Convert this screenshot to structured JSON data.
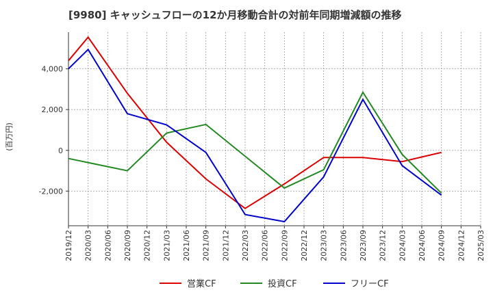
{
  "chart_data": {
    "type": "line",
    "title": "[9980]  キャッシュフローの12か月移動合計の対前年同期増減額の推移",
    "ylabel": "(百万円)",
    "xlabel": "",
    "ylim": [
      -3700,
      5800
    ],
    "yticks": [
      4000,
      2000,
      0,
      -2000
    ],
    "ytick_labels": [
      "4,000",
      "2,000",
      "0",
      "-2,000"
    ],
    "categories": [
      "2019/12",
      "2020/03",
      "2020/06",
      "2020/09",
      "2020/12",
      "2021/03",
      "2021/06",
      "2021/09",
      "2021/12",
      "2022/03",
      "2022/06",
      "2022/09",
      "2022/12",
      "2023/03",
      "2023/06",
      "2023/09",
      "2023/12",
      "2024/03",
      "2024/06",
      "2024/09",
      "2024/12",
      "2025/03"
    ],
    "grid": true,
    "legend_position": "bottom",
    "series": [
      {
        "name": "営業CF",
        "color": "#dd0000",
        "values": [
          4400,
          5550,
          null,
          2800,
          null,
          400,
          null,
          -1400,
          null,
          -2850,
          null,
          -1650,
          null,
          -350,
          null,
          -350,
          null,
          -550,
          null,
          -100,
          null,
          null
        ]
      },
      {
        "name": "投資CF",
        "color": "#228822",
        "values": [
          -400,
          null,
          null,
          -1000,
          null,
          850,
          null,
          1270,
          null,
          null,
          null,
          -1850,
          null,
          -950,
          null,
          2850,
          null,
          -200,
          null,
          -2100,
          null,
          null
        ]
      },
      {
        "name": "フリーCF",
        "color": "#0000cc",
        "values": [
          4000,
          4950,
          null,
          1800,
          null,
          1250,
          null,
          -100,
          null,
          -3150,
          null,
          -3500,
          null,
          -1300,
          null,
          2500,
          null,
          -750,
          null,
          -2200,
          null,
          null
        ]
      }
    ]
  }
}
